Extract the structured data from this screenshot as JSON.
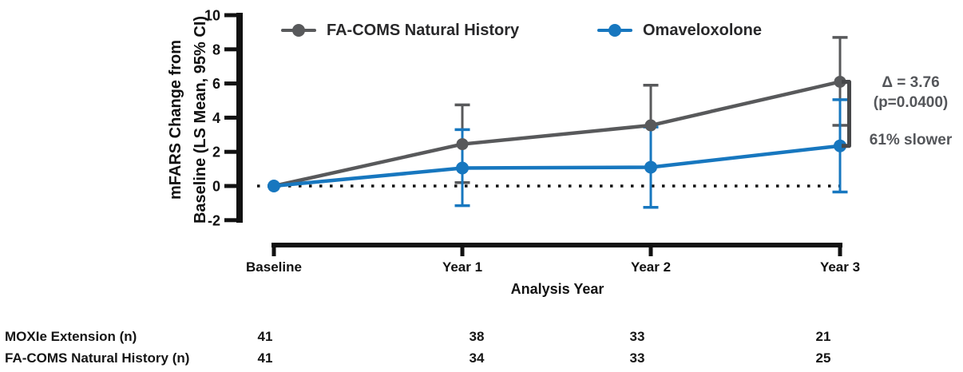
{
  "legend": {
    "items": [
      {
        "id": "facoms",
        "label": "FA-COMS Natural History",
        "color": "#58595b"
      },
      {
        "id": "omav",
        "label": "Omaveloxolone",
        "color": "#1777bf"
      }
    ]
  },
  "y_axis": {
    "title_line1": "mFARS Change from",
    "title_line2": "Baseline (LS Mean, 95% CI)",
    "ticks": [
      10,
      8,
      6,
      4,
      2,
      0,
      -2
    ]
  },
  "x_axis": {
    "title": "Analysis Year",
    "categories": [
      "Baseline",
      "Year 1",
      "Year 2",
      "Year 3"
    ]
  },
  "annotation": {
    "delta": "Δ = 3.76",
    "p_value": "(p=0.0400)",
    "slower": "61% slower"
  },
  "chart_data": {
    "type": "line",
    "categories": [
      "Baseline",
      "Year 1",
      "Year 2",
      "Year 3"
    ],
    "xlabel": "Analysis Year",
    "ylabel": "mFARS Change from Baseline (LS Mean, 95% CI)",
    "ylim": [
      -2,
      10
    ],
    "zero_line_dotted": true,
    "legend_position": "top",
    "series": [
      {
        "name": "FA-COMS Natural History",
        "color": "#58595b",
        "values": [
          0,
          2.45,
          3.55,
          6.1
        ],
        "ci_low": [
          null,
          0.2,
          null,
          3.55
        ],
        "ci_high": [
          null,
          4.75,
          5.9,
          8.7
        ]
      },
      {
        "name": "Omaveloxolone",
        "color": "#1777bf",
        "values": [
          0,
          1.05,
          1.1,
          2.35
        ],
        "ci_low": [
          null,
          -1.15,
          -1.25,
          -0.35
        ],
        "ci_high": [
          null,
          3.3,
          3.45,
          5.05
        ]
      }
    ],
    "bracket": {
      "from_value": 6.1,
      "to_value": 2.35,
      "at_category": "Year 3",
      "color": "#47484a"
    },
    "annotations": [
      "Δ = 3.76",
      "(p=0.0400)",
      "61% slower"
    ]
  },
  "table": {
    "rows": [
      {
        "label": "MOXIe Extension (n)",
        "values": [
          "41",
          "38",
          "33",
          "21"
        ]
      },
      {
        "label": "FA-COMS Natural History (n)",
        "values": [
          "41",
          "34",
          "33",
          "25"
        ]
      }
    ]
  }
}
